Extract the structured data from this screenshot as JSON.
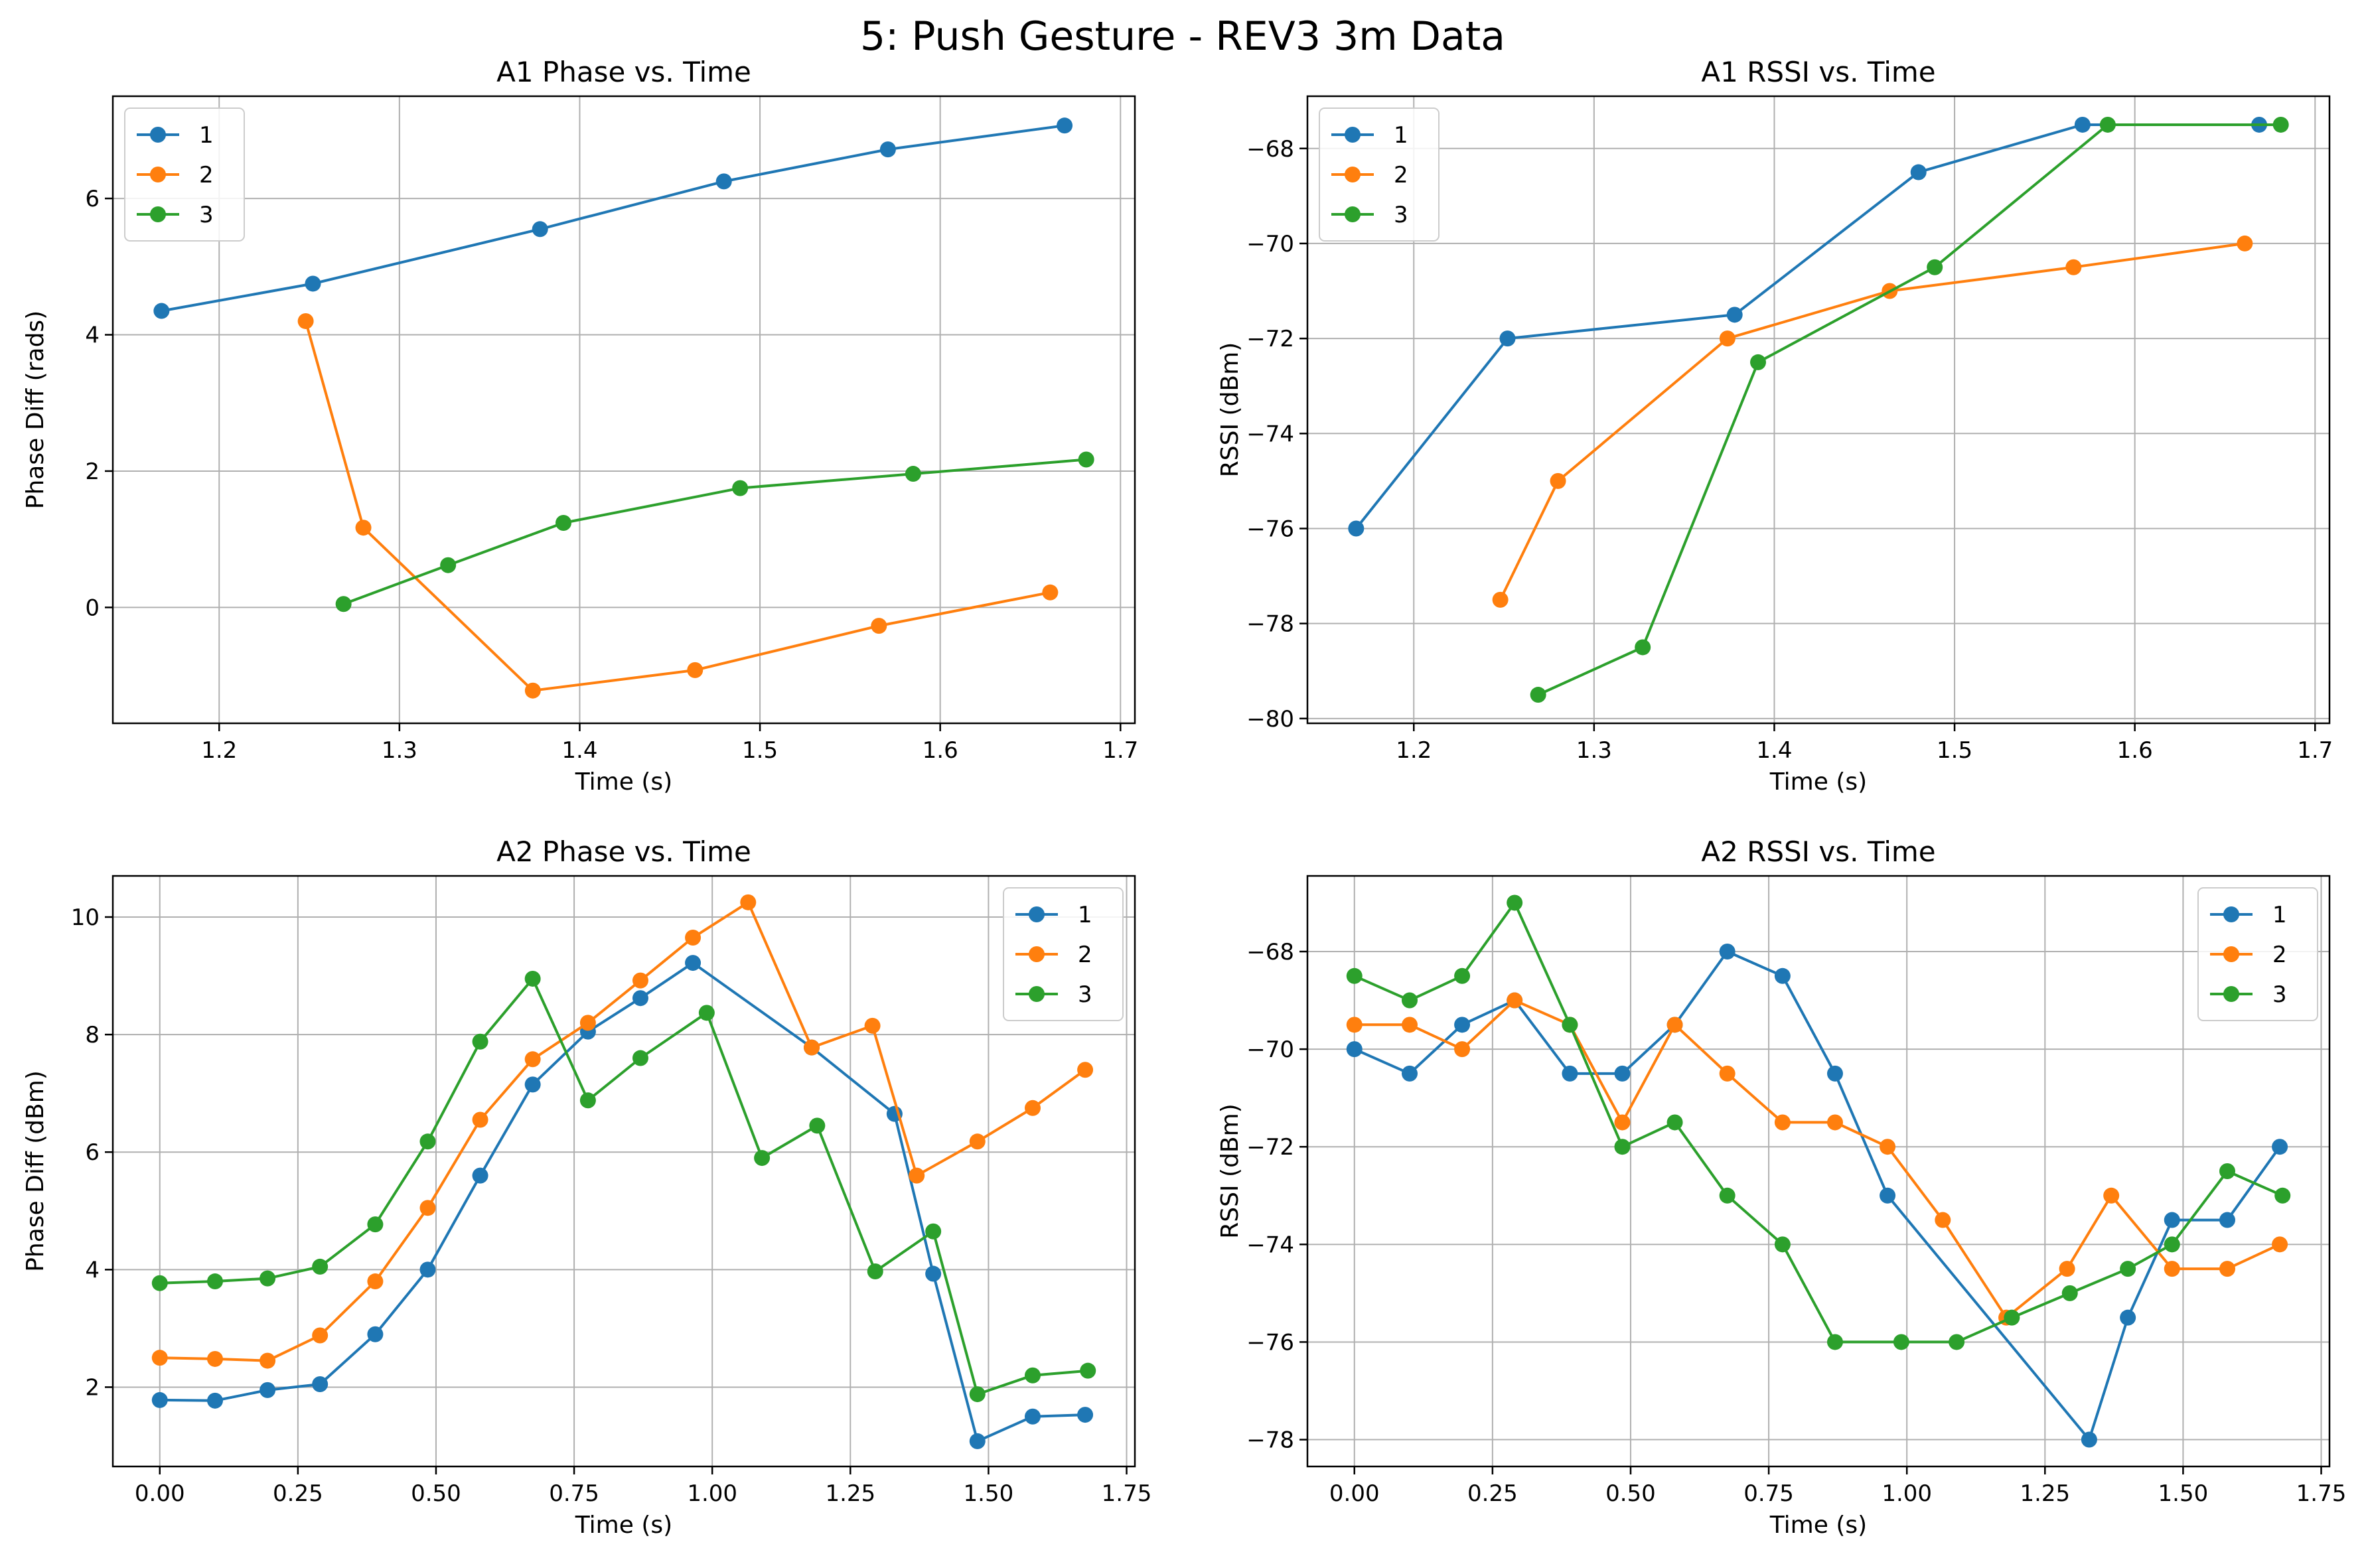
{
  "figure": {
    "title": "5: Push Gesture - REV3 3m Data"
  },
  "colors": {
    "series1": "#1f77b4",
    "series2": "#ff7f0e",
    "series3": "#2ca02c",
    "grid": "#b0b0b0",
    "axes": "#000000"
  },
  "chart_data": [
    {
      "type": "line",
      "title": "A1 Phase vs. Time",
      "xlabel": "Time (s)",
      "ylabel": "Phase Diff (rads)",
      "xlim": [
        1.141,
        1.708
      ],
      "ylim": [
        -1.7,
        7.5
      ],
      "xticks": [
        1.2,
        1.3,
        1.4,
        1.5,
        1.6,
        1.7
      ],
      "xtick_labels": [
        "1.2",
        "1.3",
        "1.4",
        "1.5",
        "1.6",
        "1.7"
      ],
      "yticks": [
        0,
        2,
        4,
        6
      ],
      "ytick_labels": [
        "0",
        "2",
        "4",
        "6"
      ],
      "grid": true,
      "legend": "upper-left",
      "series": [
        {
          "name": "1",
          "x": [
            1.168,
            1.252,
            1.378,
            1.48,
            1.571,
            1.669
          ],
          "y": [
            4.35,
            4.75,
            5.55,
            6.25,
            6.72,
            7.07
          ]
        },
        {
          "name": "2",
          "x": [
            1.248,
            1.28,
            1.374,
            1.464,
            1.566,
            1.661
          ],
          "y": [
            4.2,
            1.17,
            -1.22,
            -0.92,
            -0.27,
            0.22
          ]
        },
        {
          "name": "3",
          "x": [
            1.269,
            1.327,
            1.391,
            1.489,
            1.585,
            1.681
          ],
          "y": [
            0.05,
            0.62,
            1.24,
            1.75,
            1.96,
            2.17
          ]
        }
      ]
    },
    {
      "type": "line",
      "title": "A1 RSSI vs. Time",
      "xlabel": "Time (s)",
      "ylabel": "RSSI (dBm)",
      "xlim": [
        1.141,
        1.708
      ],
      "ylim": [
        -80.1,
        -66.9
      ],
      "xticks": [
        1.2,
        1.3,
        1.4,
        1.5,
        1.6,
        1.7
      ],
      "xtick_labels": [
        "1.2",
        "1.3",
        "1.4",
        "1.5",
        "1.6",
        "1.7"
      ],
      "yticks": [
        -80,
        -78,
        -76,
        -74,
        -72,
        -70,
        -68
      ],
      "ytick_labels": [
        "−80",
        "−78",
        "−76",
        "−74",
        "−72",
        "−70",
        "−68"
      ],
      "grid": true,
      "legend": "upper-left",
      "series": [
        {
          "name": "1",
          "x": [
            1.168,
            1.252,
            1.378,
            1.48,
            1.571,
            1.669
          ],
          "y": [
            -76,
            -72,
            -71.5,
            -68.5,
            -67.5,
            -67.5
          ]
        },
        {
          "name": "2",
          "x": [
            1.248,
            1.28,
            1.374,
            1.464,
            1.566,
            1.661
          ],
          "y": [
            -77.5,
            -75,
            -72,
            -71,
            -70.5,
            -70
          ]
        },
        {
          "name": "3",
          "x": [
            1.269,
            1.327,
            1.391,
            1.489,
            1.585,
            1.681
          ],
          "y": [
            -79.5,
            -78.5,
            -72.5,
            -70.5,
            -67.5,
            -67.5
          ]
        }
      ]
    },
    {
      "type": "line",
      "title": "A2 Phase vs. Time",
      "xlabel": "Time (s)",
      "ylabel": "Phase Diff (dBm)",
      "xlim": [
        -0.085,
        1.765
      ],
      "ylim": [
        0.65,
        10.7
      ],
      "xticks": [
        0,
        0.25,
        0.5,
        0.75,
        1.0,
        1.25,
        1.5,
        1.75
      ],
      "xtick_labels": [
        "0.00",
        "0.25",
        "0.50",
        "0.75",
        "1.00",
        "1.25",
        "1.50",
        "1.75"
      ],
      "yticks": [
        2,
        4,
        6,
        8,
        10
      ],
      "ytick_labels": [
        "2",
        "4",
        "6",
        "8",
        "10"
      ],
      "grid": true,
      "legend": "upper-right",
      "series": [
        {
          "name": "1",
          "x": [
            0,
            0.1,
            0.195,
            0.29,
            0.39,
            0.485,
            0.58,
            0.675,
            0.775,
            0.87,
            0.965,
            1.18,
            1.33,
            1.4,
            1.48,
            1.58,
            1.675
          ],
          "y": [
            1.78,
            1.77,
            1.95,
            2.05,
            2.9,
            4.0,
            5.6,
            7.15,
            8.05,
            8.62,
            9.22,
            7.78,
            6.65,
            3.93,
            1.08,
            1.5,
            1.53
          ]
        },
        {
          "name": "2",
          "x": [
            0,
            0.1,
            0.195,
            0.29,
            0.39,
            0.485,
            0.58,
            0.675,
            0.775,
            0.87,
            0.965,
            1.065,
            1.18,
            1.29,
            1.37,
            1.48,
            1.58,
            1.675
          ],
          "y": [
            2.5,
            2.48,
            2.45,
            2.88,
            3.8,
            5.05,
            6.55,
            7.58,
            8.2,
            8.92,
            9.65,
            10.25,
            7.78,
            8.15,
            5.6,
            6.18,
            6.75,
            7.4
          ]
        },
        {
          "name": "3",
          "x": [
            0,
            0.1,
            0.195,
            0.29,
            0.39,
            0.485,
            0.58,
            0.675,
            0.775,
            0.87,
            0.99,
            1.09,
            1.19,
            1.295,
            1.4,
            1.48,
            1.58,
            1.68
          ],
          "y": [
            3.77,
            3.8,
            3.85,
            4.05,
            4.77,
            6.18,
            7.88,
            8.95,
            6.88,
            7.6,
            8.37,
            5.9,
            6.45,
            3.97,
            4.65,
            1.88,
            2.2,
            2.28
          ]
        }
      ]
    },
    {
      "type": "line",
      "title": "A2 RSSI vs. Time",
      "xlabel": "Time (s)",
      "ylabel": "RSSI (dBm)",
      "xlim": [
        -0.085,
        1.765
      ],
      "ylim": [
        -78.55,
        -66.45
      ],
      "xticks": [
        0,
        0.25,
        0.5,
        0.75,
        1.0,
        1.25,
        1.5,
        1.75
      ],
      "xtick_labels": [
        "0.00",
        "0.25",
        "0.50",
        "0.75",
        "1.00",
        "1.25",
        "1.50",
        "1.75"
      ],
      "yticks": [
        -78,
        -76,
        -74,
        -72,
        -70,
        -68
      ],
      "ytick_labels": [
        "−78",
        "−76",
        "−74",
        "−72",
        "−70",
        "−68"
      ],
      "grid": true,
      "legend": "upper-right",
      "series": [
        {
          "name": "1",
          "x": [
            0,
            0.1,
            0.195,
            0.29,
            0.39,
            0.485,
            0.58,
            0.675,
            0.775,
            0.87,
            0.965,
            1.33,
            1.4,
            1.48,
            1.58,
            1.675
          ],
          "y": [
            -70,
            -70.5,
            -69.5,
            -69,
            -70.5,
            -70.5,
            -69.5,
            -68,
            -68.5,
            -70.5,
            -73,
            -78,
            -75.5,
            -73.5,
            -73.5,
            -72
          ]
        },
        {
          "name": "2",
          "x": [
            0,
            0.1,
            0.195,
            0.29,
            0.39,
            0.485,
            0.58,
            0.675,
            0.775,
            0.87,
            0.965,
            1.065,
            1.18,
            1.29,
            1.37,
            1.48,
            1.58,
            1.675
          ],
          "y": [
            -69.5,
            -69.5,
            -70,
            -69,
            -69.5,
            -71.5,
            -69.5,
            -70.5,
            -71.5,
            -71.5,
            -72,
            -73.5,
            -75.5,
            -74.5,
            -73,
            -74.5,
            -74.5,
            -74
          ]
        },
        {
          "name": "3",
          "x": [
            0,
            0.1,
            0.195,
            0.29,
            0.39,
            0.485,
            0.58,
            0.675,
            0.775,
            0.87,
            0.99,
            1.09,
            1.19,
            1.295,
            1.4,
            1.48,
            1.58,
            1.68
          ],
          "y": [
            -68.5,
            -69,
            -68.5,
            -67,
            -69.5,
            -72,
            -71.5,
            -73,
            -74,
            -76,
            -76,
            -76,
            -75.5,
            -75,
            -74.5,
            -74,
            -72.5,
            -73
          ]
        }
      ]
    }
  ]
}
